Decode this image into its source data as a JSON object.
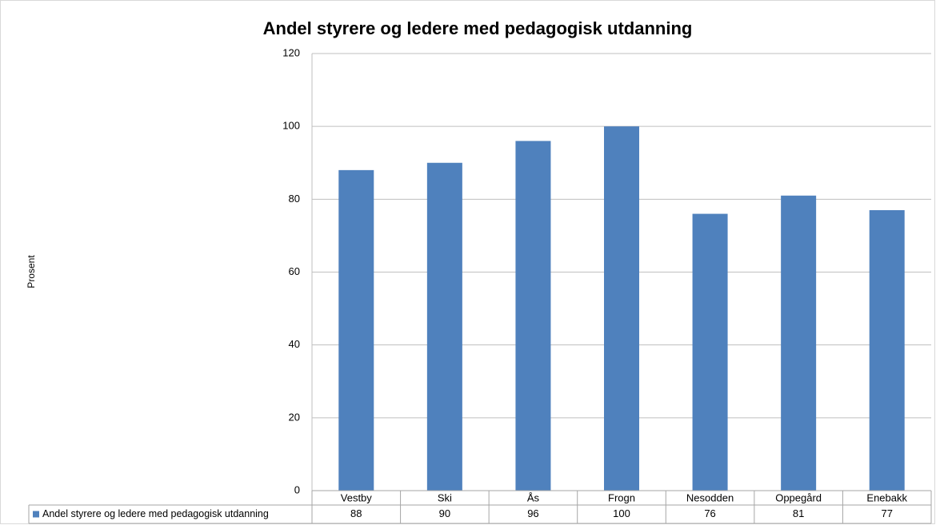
{
  "chart_data": {
    "type": "bar",
    "title": "Andel styrere og ledere med pedagogisk utdanning",
    "y_label": "Prosent",
    "categories": [
      "Vestby",
      "Ski",
      "Ås",
      "Frogn",
      "Nesodden",
      "Oppegård",
      "Enebakk"
    ],
    "series": [
      {
        "name": "Andel styrere og ledere med pedagogisk utdanning",
        "color": "#4f81bd",
        "values": [
          88,
          90,
          96,
          100,
          76,
          81,
          77
        ]
      }
    ],
    "ylim": [
      0,
      120
    ],
    "yticks": [
      0,
      20,
      40,
      60,
      80,
      100,
      120
    ],
    "grid": true,
    "data_table": true
  }
}
